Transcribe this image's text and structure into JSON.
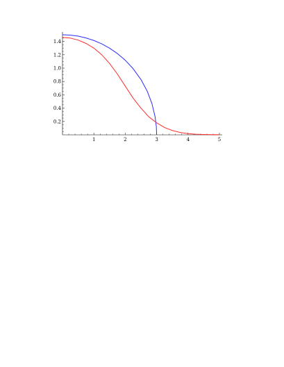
{
  "chart_data": {
    "type": "line",
    "title": "",
    "xlabel": "",
    "ylabel": "",
    "xlim": [
      0,
      5
    ],
    "ylim": [
      0,
      1.5
    ],
    "grid": false,
    "x_ticks": [
      1,
      2,
      3,
      4,
      5
    ],
    "x_tick_labels": [
      "1",
      "2",
      "3",
      "4",
      "5"
    ],
    "y_ticks": [
      0.2,
      0.4,
      0.6,
      0.8,
      1.0,
      1.2,
      1.4
    ],
    "y_tick_labels": [
      "0.2",
      "0.4",
      "0.6",
      "0.8",
      "1.0",
      "1.2",
      "1.4"
    ],
    "series": [
      {
        "color": "#2b2bff",
        "x": [
          0,
          0.25,
          0.5,
          0.75,
          1.0,
          1.25,
          1.5,
          1.75,
          2.0,
          2.25,
          2.5,
          2.7,
          2.85,
          2.95,
          2.99,
          3.0
        ],
        "values": [
          1.5,
          1.495,
          1.479,
          1.452,
          1.414,
          1.364,
          1.299,
          1.218,
          1.118,
          0.992,
          0.829,
          0.654,
          0.468,
          0.272,
          0.122,
          0.0
        ]
      },
      {
        "color": "#ff2b2b",
        "x": [
          0,
          0.25,
          0.5,
          0.75,
          1.0,
          1.25,
          1.5,
          1.75,
          2.0,
          2.25,
          2.5,
          2.75,
          3.0,
          3.25,
          3.5,
          3.75,
          4.0,
          4.25,
          4.5,
          4.75,
          5.0
        ],
        "values": [
          1.46,
          1.45,
          1.42,
          1.37,
          1.3,
          1.2,
          1.07,
          0.91,
          0.73,
          0.55,
          0.4,
          0.27,
          0.18,
          0.11,
          0.065,
          0.035,
          0.018,
          0.009,
          0.005,
          0.003,
          0.002
        ]
      }
    ]
  }
}
